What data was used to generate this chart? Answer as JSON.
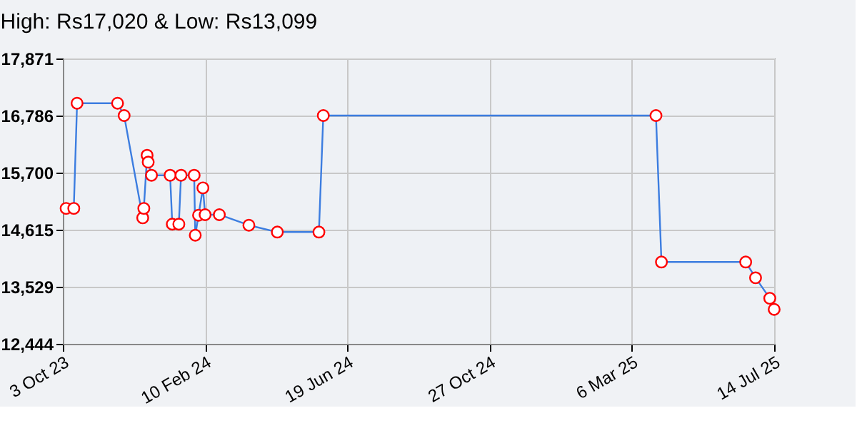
{
  "chart_data": {
    "type": "line",
    "title": "High: Rs17,020 & Low: Rs13,099",
    "x": [
      "2023-10-06",
      "2023-10-13",
      "2023-10-16",
      "2023-11-22",
      "2023-11-28",
      "2023-12-15",
      "2023-12-16",
      "2023-12-19",
      "2023-12-20",
      "2023-12-23",
      "2024-01-09",
      "2024-01-11",
      "2024-01-17",
      "2024-01-19",
      "2024-01-31",
      "2024-02-01",
      "2024-02-04",
      "2024-02-08",
      "2024-02-10",
      "2024-02-23",
      "2024-03-21",
      "2024-04-16",
      "2024-05-24",
      "2024-05-28",
      "2025-03-28",
      "2025-04-02",
      "2025-06-18",
      "2025-06-27",
      "2025-07-10",
      "2025-07-14"
    ],
    "series": [
      {
        "color": "#3c7de0",
        "values": [
          15020,
          15020,
          17020,
          17020,
          16786,
          14840,
          15020,
          16030,
          15900,
          15650,
          15650,
          14720,
          14720,
          15650,
          15650,
          14510,
          14890,
          15410,
          14900,
          14900,
          14700,
          14570,
          14570,
          16786,
          16786,
          14000,
          14000,
          13700,
          13310,
          13099
        ]
      }
    ],
    "xlim": [
      "2023-10-03",
      "2025-07-14"
    ],
    "xticks": [
      {
        "value": "2023-10-03",
        "label": "3 Oct 23"
      },
      {
        "value": "2024-02-10",
        "label": "10 Feb 24"
      },
      {
        "value": "2024-06-19",
        "label": "19 Jun 24"
      },
      {
        "value": "2024-10-27",
        "label": "27 Oct 24"
      },
      {
        "value": "2025-03-06",
        "label": "6 Mar 25"
      },
      {
        "value": "2025-07-14",
        "label": "14 Jul 25"
      }
    ],
    "ylim": [
      12444,
      17871
    ],
    "yticks": [
      {
        "value": 12444,
        "label": "12,444"
      },
      {
        "value": 13529,
        "label": "13,529"
      },
      {
        "value": 14615,
        "label": "14,615"
      },
      {
        "value": 15700,
        "label": "15,700"
      },
      {
        "value": 16786,
        "label": "16,786"
      },
      {
        "value": 17871,
        "label": "17,871"
      }
    ],
    "grid": true,
    "marker": "circle",
    "line_style": "solid"
  }
}
